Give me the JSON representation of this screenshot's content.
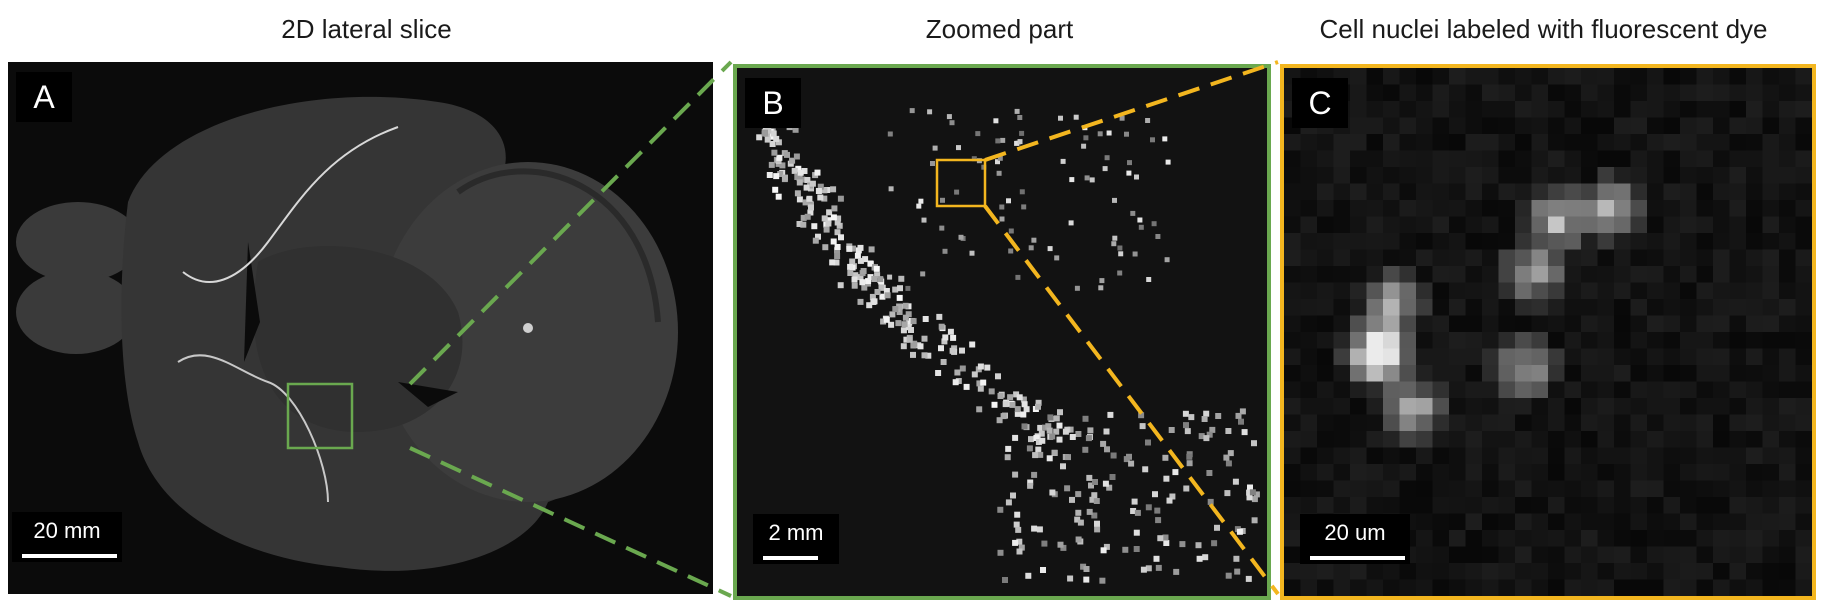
{
  "titles": {
    "a": "2D lateral slice",
    "b": "Zoomed part",
    "c": "Cell nuclei labeled with fluorescent dye"
  },
  "panels": {
    "a": {
      "letter": "A",
      "scale_label": "20 mm"
    },
    "b": {
      "letter": "B",
      "scale_label": "2 mm"
    },
    "c": {
      "letter": "C",
      "scale_label": "20 um"
    }
  },
  "colors": {
    "zoom_green": "#6aa84f",
    "zoom_yellow": "#f3b61f"
  }
}
